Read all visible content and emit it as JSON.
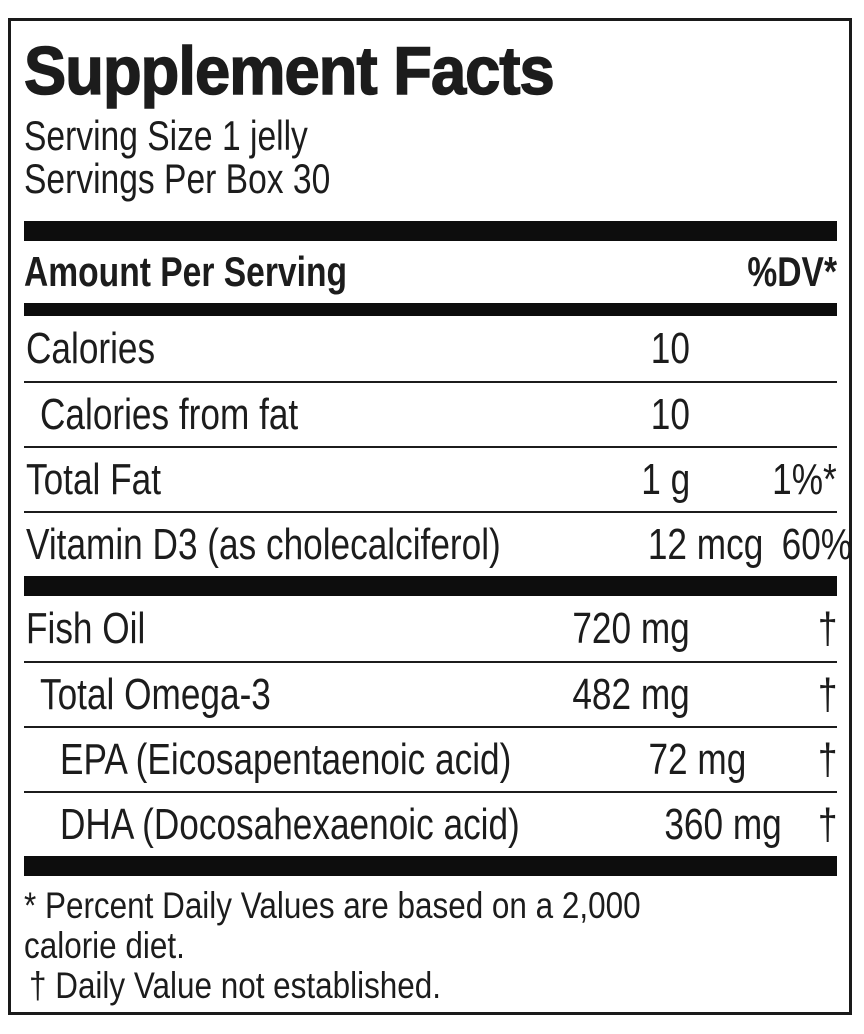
{
  "colors": {
    "text": "#1c1c1c",
    "bar": "#0d0d0d",
    "background": "#ffffff"
  },
  "label": {
    "title": "Supplement Facts",
    "serving_size": "Serving Size 1 jelly",
    "servings_per_box": "Servings Per Box 30",
    "column_header": {
      "amount_per_serving": "Amount Per Serving",
      "percent_dv": "%DV*"
    },
    "groups": [
      {
        "rows": [
          {
            "name": "Calories",
            "amount": "10",
            "dv": "",
            "indent": 0
          },
          {
            "name": "Calories from fat",
            "amount": "10",
            "dv": "",
            "indent": 1
          },
          {
            "name": "Total Fat",
            "amount": "1 g",
            "dv": "1%*",
            "indent": 0
          },
          {
            "name": "Vitamin D3 (as cholecalciferol)",
            "amount": "12 mcg",
            "dv": "60%",
            "indent": 0
          }
        ]
      },
      {
        "rows": [
          {
            "name": "Fish Oil",
            "amount": "720 mg",
            "dv": "†",
            "indent": 0
          },
          {
            "name": "Total Omega-3",
            "amount": "482 mg",
            "dv": "†",
            "indent": 1
          },
          {
            "name": "EPA (Eicosapentaenoic acid)",
            "amount": "72 mg",
            "dv": "†",
            "indent": 2
          },
          {
            "name": "DHA (Docosahexaenoic acid)",
            "amount": "360 mg",
            "dv": "†",
            "indent": 2
          }
        ]
      }
    ],
    "footnotes": [
      "* Percent Daily Values are based on a 2,000",
      "calorie diet.",
      "† Daily Value not established."
    ]
  }
}
